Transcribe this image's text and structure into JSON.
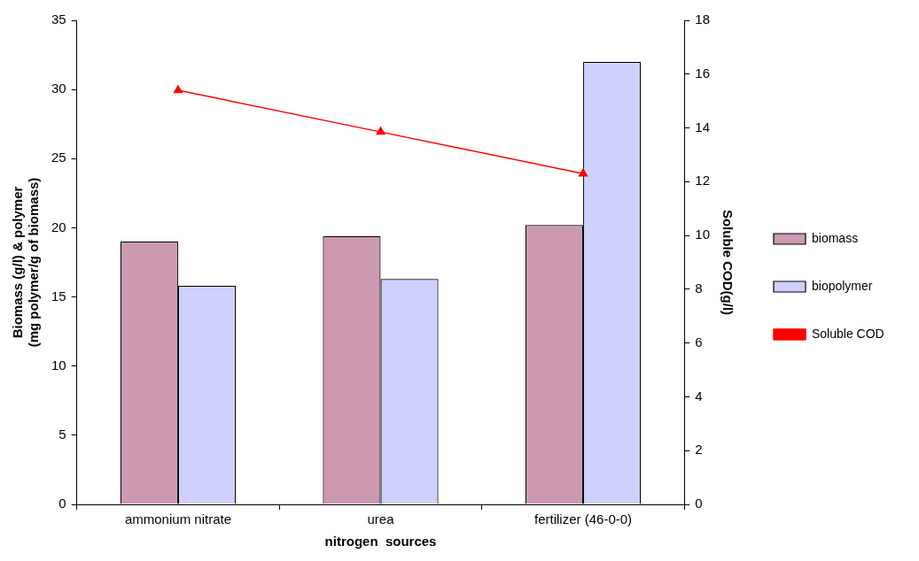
{
  "chart_data": {
    "type": "bar",
    "xlabel": "nitrogen  sources",
    "ylabel": "Biomass (g/l) & polymer\n(mg polymer/g of biomass)",
    "y2label": "Soluble COD(g/l)",
    "categories": [
      "ammonium nitrate",
      "urea",
      "fertilizer (46-0-0)"
    ],
    "series": [
      {
        "name": "biomass",
        "color": "#cc99b1",
        "values": [
          19.0,
          19.4,
          20.2
        ]
      },
      {
        "name": "biopolymer",
        "color": "#d0d0ff",
        "values": [
          15.8,
          16.3,
          32.0
        ]
      },
      {
        "name": "Soluble COD",
        "type": "line",
        "axis": "y2",
        "color": "#ff0000",
        "marker": "triangle",
        "values": [
          15.4,
          13.85,
          12.3
        ]
      }
    ],
    "ylim": [
      0,
      35
    ],
    "yticks": [
      0,
      5,
      10,
      15,
      20,
      25,
      30,
      35
    ],
    "y2lim": [
      0,
      18
    ],
    "y2ticks": [
      0,
      2,
      4,
      6,
      8,
      10,
      12,
      14,
      16,
      18
    ],
    "grid": false,
    "legend": "right"
  }
}
